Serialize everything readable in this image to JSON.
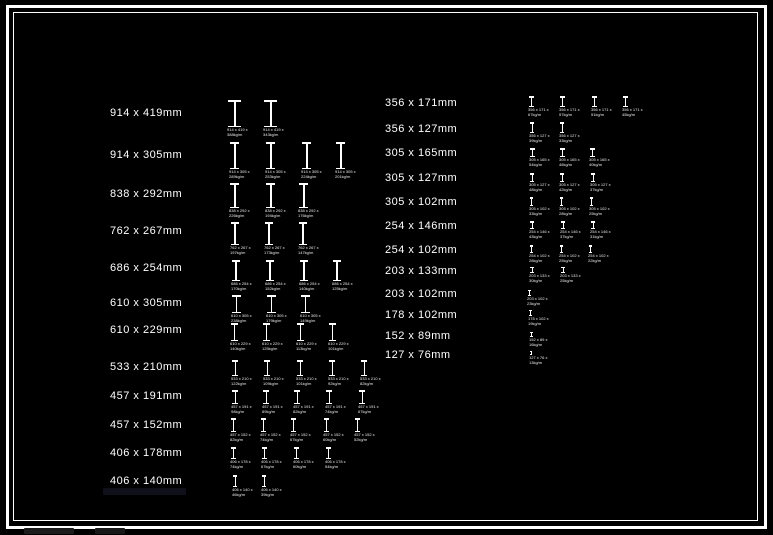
{
  "canvas": {
    "background_color": "#000000",
    "stroke_color": "#ffffff",
    "frame_color": "#ffffff"
  },
  "beam_library": {
    "glyph_name": "i-beam-section-glyph",
    "columns": [
      {
        "rows": [
          {
            "label": "914 x 419mm",
            "sections": [
              "914 x 419 x 388kg/m",
              "914 x 419 x 343kg/m"
            ]
          },
          {
            "label": "914 x 305mm",
            "sections": [
              "914 x 305 x 289kg/m",
              "914 x 305 x 253kg/m",
              "914 x 305 x 224kg/m",
              "914 x 305 x 201kg/m"
            ]
          },
          {
            "label": "838 x 292mm",
            "sections": [
              "838 x 292 x 226kg/m",
              "838 x 292 x 194kg/m",
              "838 x 292 x 176kg/m"
            ]
          },
          {
            "label": "762 x 267mm",
            "sections": [
              "762 x 267 x 197kg/m",
              "762 x 267 x 173kg/m",
              "762 x 267 x 147kg/m"
            ]
          },
          {
            "label": "686 x 254mm",
            "sections": [
              "686 x 254 x 170kg/m",
              "686 x 254 x 152kg/m",
              "686 x 254 x 140kg/m",
              "686 x 254 x 125kg/m"
            ]
          },
          {
            "label": "610 x 305mm",
            "sections": [
              "610 x 305 x 238kg/m",
              "610 x 305 x 179kg/m",
              "610 x 305 x 149kg/m"
            ]
          },
          {
            "label": "610 x 229mm",
            "sections": [
              "610 x 229 x 140kg/m",
              "610 x 229 x 125kg/m",
              "610 x 229 x 113kg/m",
              "610 x 229 x 101kg/m"
            ]
          },
          {
            "label": "533 x 210mm",
            "sections": [
              "533 x 210 x 122kg/m",
              "533 x 210 x 109kg/m",
              "533 x 210 x 101kg/m",
              "533 x 210 x 92kg/m",
              "533 x 210 x 82kg/m"
            ]
          },
          {
            "label": "457 x 191mm",
            "sections": [
              "457 x 191 x 98kg/m",
              "457 x 191 x 89kg/m",
              "457 x 191 x 82kg/m",
              "457 x 191 x 74kg/m",
              "457 x 191 x 67kg/m"
            ]
          },
          {
            "label": "457 x 152mm",
            "sections": [
              "457 x 152 x 82kg/m",
              "457 x 152 x 74kg/m",
              "457 x 152 x 67kg/m",
              "457 x 152 x 60kg/m",
              "457 x 152 x 52kg/m"
            ]
          },
          {
            "label": "406 x 178mm",
            "sections": [
              "406 x 178 x 74kg/m",
              "406 x 178 x 67kg/m",
              "406 x 178 x 60kg/m",
              "406 x 178 x 54kg/m"
            ]
          },
          {
            "label": "406 x 140mm",
            "sections": [
              "406 x 140 x 46kg/m",
              "406 x 140 x 39kg/m"
            ]
          }
        ]
      },
      {
        "rows": [
          {
            "label": "356 x 171mm",
            "sections": [
              "356 x 171 x 67kg/m",
              "356 x 171 x 57kg/m",
              "356 x 171 x 51kg/m",
              "356 x 171 x 45kg/m"
            ]
          },
          {
            "label": "356 x 127mm",
            "sections": [
              "356 x 127 x 39kg/m",
              "356 x 127 x 33kg/m"
            ]
          },
          {
            "label": "305 x 165mm",
            "sections": [
              "305 x 165 x 54kg/m",
              "305 x 165 x 46kg/m",
              "305 x 165 x 40kg/m"
            ]
          },
          {
            "label": "305 x 127mm",
            "sections": [
              "305 x 127 x 48kg/m",
              "305 x 127 x 42kg/m",
              "305 x 127 x 37kg/m"
            ]
          },
          {
            "label": "305 x 102mm",
            "sections": [
              "305 x 102 x 33kg/m",
              "305 x 102 x 28kg/m",
              "305 x 102 x 25kg/m"
            ]
          },
          {
            "label": "254 x 146mm",
            "sections": [
              "254 x 146 x 43kg/m",
              "254 x 146 x 37kg/m",
              "254 x 146 x 31kg/m"
            ]
          },
          {
            "label": "254 x 102mm",
            "sections": [
              "254 x 102 x 28kg/m",
              "254 x 102 x 25kg/m",
              "254 x 102 x 22kg/m"
            ]
          },
          {
            "label": "203 x 133mm",
            "sections": [
              "203 x 133 x 30kg/m",
              "203 x 133 x 25kg/m"
            ]
          },
          {
            "label": "203 x 102mm",
            "sections": [
              "203 x 102 x 23kg/m"
            ]
          },
          {
            "label": "178 x 102mm",
            "sections": [
              "178 x 102 x 19kg/m"
            ]
          },
          {
            "label": "152 x 89mm",
            "sections": [
              "152 x 89 x 16kg/m"
            ]
          },
          {
            "label": "127 x 76mm",
            "sections": [
              "127 x 76 x 13kg/m"
            ]
          }
        ]
      }
    ]
  }
}
